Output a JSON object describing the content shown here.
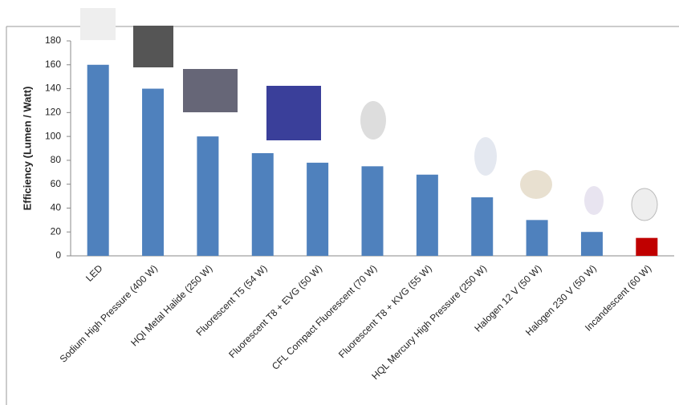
{
  "chart_data": {
    "type": "bar",
    "y_label": "Efficiency (Lumen / Watt)",
    "categories": [
      "LED",
      "Sodium High Pressure (400 W)",
      "HQI Metal Halide (250 W)",
      "Fluorescent T5 (54 W)",
      "Fluorescent T8 + EVG (50 W)",
      "CFL Compact Fluorescent (70 W)",
      "Fluorescent T8 + KVG (55 W)",
      "HQL Mercury High Pressure (250 W)",
      "Halogen 12 V (50 W)",
      "Halogen 230 V (50 W)",
      "Incandescent (60 W)"
    ],
    "values": [
      160,
      140,
      100,
      86,
      78,
      75,
      68,
      49,
      30,
      20,
      15
    ],
    "colors": [
      "#4f81bd",
      "#4f81bd",
      "#4f81bd",
      "#4f81bd",
      "#4f81bd",
      "#4f81bd",
      "#4f81bd",
      "#4f81bd",
      "#4f81bd",
      "#4f81bd",
      "#c00000"
    ],
    "ylim": [
      0,
      180
    ],
    "yticks": [
      0,
      20,
      40,
      60,
      80,
      100,
      120,
      140,
      160,
      180
    ],
    "grid": false
  }
}
